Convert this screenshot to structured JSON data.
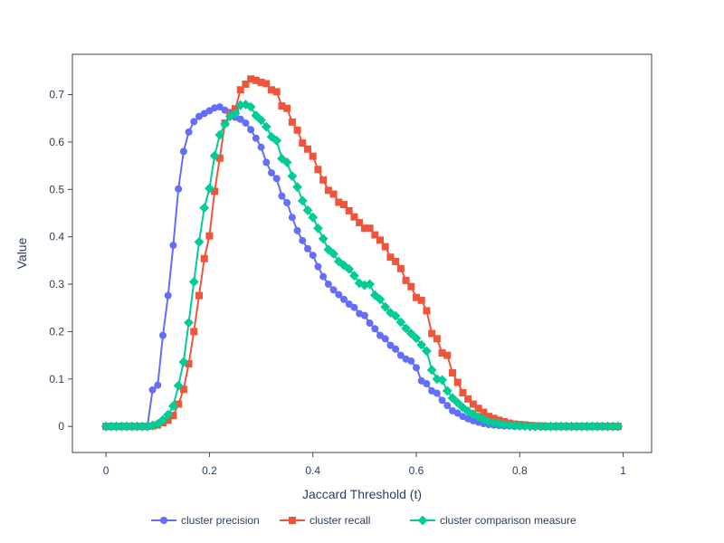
{
  "chart_data": {
    "type": "line",
    "xlabel": "Jaccard Threshold (t)",
    "ylabel": "Value",
    "xlim": [
      -0.065,
      1.055
    ],
    "ylim": [
      -0.055,
      0.785
    ],
    "xticks": [
      0,
      0.2,
      0.4,
      0.6,
      0.8,
      1
    ],
    "xtick_labels": [
      "0",
      "0.2",
      "0.4",
      "0.6",
      "0.8",
      "1"
    ],
    "yticks": [
      0,
      0.1,
      0.2,
      0.3,
      0.4,
      0.5,
      0.6,
      0.7
    ],
    "ytick_labels": [
      "0",
      "0.1",
      "0.2",
      "0.3",
      "0.4",
      "0.5",
      "0.6",
      "0.7"
    ],
    "grid": false,
    "legend_position": "bottom-center",
    "series": [
      {
        "name": "cluster precision",
        "color": "#636efa",
        "marker": "circle",
        "x": [
          0.0,
          0.01,
          0.02,
          0.03,
          0.04,
          0.05,
          0.06,
          0.07,
          0.08,
          0.09,
          0.1,
          0.11,
          0.12,
          0.13,
          0.14,
          0.15,
          0.16,
          0.17,
          0.18,
          0.19,
          0.2,
          0.21,
          0.22,
          0.23,
          0.24,
          0.25,
          0.26,
          0.27,
          0.28,
          0.29,
          0.3,
          0.31,
          0.32,
          0.33,
          0.34,
          0.35,
          0.36,
          0.37,
          0.38,
          0.39,
          0.4,
          0.41,
          0.42,
          0.43,
          0.44,
          0.45,
          0.46,
          0.47,
          0.48,
          0.49,
          0.5,
          0.51,
          0.52,
          0.53,
          0.54,
          0.55,
          0.56,
          0.57,
          0.58,
          0.59,
          0.6,
          0.61,
          0.62,
          0.63,
          0.64,
          0.65,
          0.66,
          0.67,
          0.68,
          0.69,
          0.7,
          0.71,
          0.72,
          0.73,
          0.74,
          0.75,
          0.76,
          0.77,
          0.78,
          0.79,
          0.8,
          0.81,
          0.82,
          0.83,
          0.84,
          0.85,
          0.86,
          0.87,
          0.88,
          0.89,
          0.9,
          0.91,
          0.92,
          0.93,
          0.94,
          0.95,
          0.96,
          0.97,
          0.98,
          0.99
        ],
        "y": [
          0,
          0,
          0,
          0,
          0,
          0,
          0,
          0,
          0,
          0.077,
          0.087,
          0.192,
          0.276,
          0.382,
          0.501,
          0.58,
          0.621,
          0.643,
          0.654,
          0.66,
          0.666,
          0.672,
          0.674,
          0.667,
          0.662,
          0.652,
          0.648,
          0.64,
          0.626,
          0.608,
          0.589,
          0.557,
          0.535,
          0.523,
          0.486,
          0.472,
          0.441,
          0.413,
          0.392,
          0.375,
          0.361,
          0.337,
          0.316,
          0.3,
          0.288,
          0.278,
          0.268,
          0.258,
          0.251,
          0.238,
          0.234,
          0.218,
          0.206,
          0.192,
          0.185,
          0.171,
          0.163,
          0.15,
          0.142,
          0.138,
          0.124,
          0.096,
          0.09,
          0.075,
          0.07,
          0.055,
          0.044,
          0.033,
          0.028,
          0.021,
          0.016,
          0.012,
          0.009,
          0.006,
          0.004,
          0.003,
          0.002,
          0.001,
          0.001,
          0,
          0,
          0,
          0,
          0,
          0,
          0,
          0,
          0,
          0,
          0,
          0,
          0,
          0,
          0,
          0,
          0,
          0,
          0,
          0,
          0
        ]
      },
      {
        "name": "cluster recall",
        "color": "#ef553b",
        "marker": "square",
        "x": [
          0.0,
          0.01,
          0.02,
          0.03,
          0.04,
          0.05,
          0.06,
          0.07,
          0.08,
          0.09,
          0.1,
          0.11,
          0.12,
          0.13,
          0.14,
          0.15,
          0.16,
          0.17,
          0.18,
          0.19,
          0.2,
          0.21,
          0.22,
          0.23,
          0.24,
          0.25,
          0.26,
          0.27,
          0.28,
          0.29,
          0.3,
          0.31,
          0.32,
          0.33,
          0.34,
          0.35,
          0.36,
          0.37,
          0.38,
          0.39,
          0.4,
          0.41,
          0.42,
          0.43,
          0.44,
          0.45,
          0.46,
          0.47,
          0.48,
          0.49,
          0.5,
          0.51,
          0.52,
          0.53,
          0.54,
          0.55,
          0.56,
          0.57,
          0.58,
          0.59,
          0.6,
          0.61,
          0.62,
          0.63,
          0.64,
          0.65,
          0.66,
          0.67,
          0.68,
          0.69,
          0.7,
          0.71,
          0.72,
          0.73,
          0.74,
          0.75,
          0.76,
          0.77,
          0.78,
          0.79,
          0.8,
          0.81,
          0.82,
          0.83,
          0.84,
          0.85,
          0.86,
          0.87,
          0.88,
          0.89,
          0.9,
          0.91,
          0.92,
          0.93,
          0.94,
          0.95,
          0.96,
          0.97,
          0.98,
          0.99
        ],
        "y": [
          0,
          0,
          0,
          0,
          0,
          0,
          0,
          0,
          0,
          0.001,
          0.003,
          0.008,
          0.013,
          0.023,
          0.047,
          0.078,
          0.132,
          0.2,
          0.276,
          0.354,
          0.402,
          0.496,
          0.566,
          0.64,
          0.658,
          0.67,
          0.71,
          0.722,
          0.733,
          0.73,
          0.726,
          0.723,
          0.71,
          0.706,
          0.676,
          0.671,
          0.642,
          0.625,
          0.598,
          0.585,
          0.57,
          0.542,
          0.52,
          0.498,
          0.49,
          0.473,
          0.468,
          0.455,
          0.442,
          0.43,
          0.418,
          0.418,
          0.404,
          0.393,
          0.379,
          0.357,
          0.348,
          0.333,
          0.308,
          0.295,
          0.272,
          0.266,
          0.244,
          0.196,
          0.185,
          0.155,
          0.15,
          0.113,
          0.093,
          0.071,
          0.058,
          0.047,
          0.038,
          0.03,
          0.021,
          0.017,
          0.013,
          0.01,
          0.007,
          0.005,
          0.004,
          0.003,
          0.002,
          0.001,
          0.001,
          0,
          0,
          0,
          0,
          0,
          0,
          0,
          0,
          0,
          0,
          0,
          0,
          0,
          0,
          0
        ]
      },
      {
        "name": "cluster comparison measure",
        "color": "#00cc96",
        "marker": "diamond",
        "x": [
          0.0,
          0.01,
          0.02,
          0.03,
          0.04,
          0.05,
          0.06,
          0.07,
          0.08,
          0.09,
          0.1,
          0.11,
          0.12,
          0.13,
          0.14,
          0.15,
          0.16,
          0.17,
          0.18,
          0.19,
          0.2,
          0.21,
          0.22,
          0.23,
          0.24,
          0.25,
          0.26,
          0.27,
          0.28,
          0.29,
          0.3,
          0.31,
          0.32,
          0.33,
          0.34,
          0.35,
          0.36,
          0.37,
          0.38,
          0.39,
          0.4,
          0.41,
          0.42,
          0.43,
          0.44,
          0.45,
          0.46,
          0.47,
          0.48,
          0.49,
          0.5,
          0.51,
          0.52,
          0.53,
          0.54,
          0.55,
          0.56,
          0.57,
          0.58,
          0.59,
          0.6,
          0.61,
          0.62,
          0.63,
          0.64,
          0.65,
          0.66,
          0.67,
          0.68,
          0.69,
          0.7,
          0.71,
          0.72,
          0.73,
          0.74,
          0.75,
          0.76,
          0.77,
          0.78,
          0.79,
          0.8,
          0.81,
          0.82,
          0.83,
          0.84,
          0.85,
          0.86,
          0.87,
          0.88,
          0.89,
          0.9,
          0.91,
          0.92,
          0.93,
          0.94,
          0.95,
          0.96,
          0.97,
          0.98,
          0.99
        ],
        "y": [
          0,
          0,
          0,
          0,
          0,
          0,
          0,
          0,
          0,
          0.002,
          0.005,
          0.014,
          0.025,
          0.043,
          0.086,
          0.136,
          0.219,
          0.305,
          0.389,
          0.461,
          0.502,
          0.571,
          0.615,
          0.638,
          0.654,
          0.66,
          0.678,
          0.679,
          0.674,
          0.656,
          0.646,
          0.632,
          0.611,
          0.603,
          0.565,
          0.557,
          0.528,
          0.505,
          0.476,
          0.456,
          0.441,
          0.418,
          0.396,
          0.373,
          0.364,
          0.348,
          0.34,
          0.332,
          0.318,
          0.302,
          0.298,
          0.3,
          0.277,
          0.268,
          0.252,
          0.24,
          0.233,
          0.22,
          0.207,
          0.196,
          0.186,
          0.172,
          0.159,
          0.119,
          0.1,
          0.098,
          0.075,
          0.06,
          0.05,
          0.04,
          0.032,
          0.026,
          0.02,
          0.015,
          0.01,
          0.008,
          0.006,
          0.004,
          0.003,
          0.002,
          0.001,
          0.001,
          0,
          0,
          0,
          0,
          0,
          0,
          0,
          0,
          0,
          0,
          0,
          0,
          0,
          0,
          0,
          0,
          0,
          0
        ]
      }
    ]
  }
}
